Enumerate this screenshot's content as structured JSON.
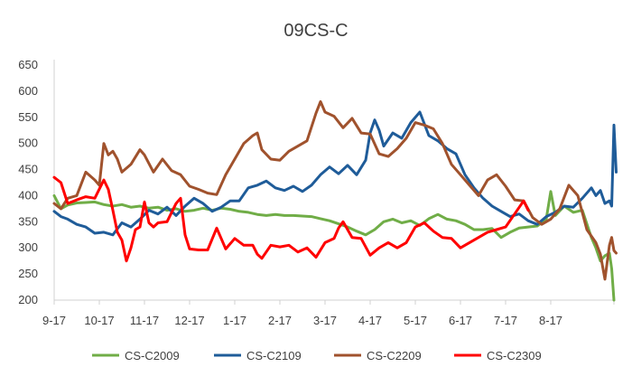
{
  "chart_data": {
    "type": "line",
    "title": "09CS-C",
    "xlabel": "",
    "ylabel": "",
    "ylim": [
      200,
      650
    ],
    "yticks": [
      200,
      250,
      300,
      350,
      400,
      450,
      500,
      550,
      600,
      650
    ],
    "xlim": [
      0,
      12.4
    ],
    "xtick_labels": [
      "9-17",
      "10-17",
      "11-17",
      "12-17",
      "1-17",
      "2-17",
      "3-17",
      "4-17",
      "5-17",
      "6-17",
      "7-17",
      "8-17"
    ],
    "grid": false,
    "legend_position": "bottom",
    "series": [
      {
        "name": "CS-C2009",
        "color": "#70ad47",
        "points": [
          [
            0,
            400
          ],
          [
            0.15,
            375
          ],
          [
            0.3,
            382
          ],
          [
            0.5,
            386
          ],
          [
            0.7,
            387
          ],
          [
            0.9,
            388
          ],
          [
            1.1,
            383
          ],
          [
            1.3,
            380
          ],
          [
            1.5,
            383
          ],
          [
            1.7,
            378
          ],
          [
            1.9,
            380
          ],
          [
            2.1,
            376
          ],
          [
            2.3,
            378
          ],
          [
            2.5,
            372
          ],
          [
            2.7,
            375
          ],
          [
            2.9,
            370
          ],
          [
            3.1,
            372
          ],
          [
            3.3,
            376
          ],
          [
            3.5,
            372
          ],
          [
            3.7,
            376
          ],
          [
            3.9,
            374
          ],
          [
            4.1,
            370
          ],
          [
            4.3,
            368
          ],
          [
            4.5,
            364
          ],
          [
            4.7,
            362
          ],
          [
            4.9,
            364
          ],
          [
            5.1,
            362
          ],
          [
            5.3,
            362
          ],
          [
            5.5,
            361
          ],
          [
            5.7,
            360
          ],
          [
            5.9,
            356
          ],
          [
            6.1,
            352
          ],
          [
            6.3,
            346
          ],
          [
            6.5,
            340
          ],
          [
            6.7,
            332
          ],
          [
            6.9,
            325
          ],
          [
            7.1,
            335
          ],
          [
            7.3,
            350
          ],
          [
            7.5,
            355
          ],
          [
            7.7,
            348
          ],
          [
            7.9,
            352
          ],
          [
            8.1,
            343
          ],
          [
            8.3,
            356
          ],
          [
            8.5,
            364
          ],
          [
            8.7,
            355
          ],
          [
            8.9,
            352
          ],
          [
            9.1,
            345
          ],
          [
            9.3,
            335
          ],
          [
            9.5,
            335
          ],
          [
            9.7,
            337
          ],
          [
            9.9,
            320
          ],
          [
            10.1,
            330
          ],
          [
            10.3,
            338
          ],
          [
            10.5,
            340
          ],
          [
            10.7,
            342
          ],
          [
            10.9,
            355
          ],
          [
            11.0,
            408
          ],
          [
            11.1,
            362
          ],
          [
            11.3,
            380
          ],
          [
            11.5,
            368
          ],
          [
            11.7,
            372
          ],
          [
            11.9,
            320
          ],
          [
            12.0,
            300
          ],
          [
            12.1,
            275
          ],
          [
            12.2,
            285
          ],
          [
            12.3,
            290
          ],
          [
            12.35,
            260
          ],
          [
            12.4,
            200
          ]
        ]
      },
      {
        "name": "CS-C2109",
        "color": "#1f5c99",
        "points": [
          [
            0,
            370
          ],
          [
            0.15,
            360
          ],
          [
            0.3,
            355
          ],
          [
            0.5,
            345
          ],
          [
            0.7,
            340
          ],
          [
            0.9,
            328
          ],
          [
            1.1,
            330
          ],
          [
            1.3,
            325
          ],
          [
            1.5,
            348
          ],
          [
            1.7,
            340
          ],
          [
            1.9,
            355
          ],
          [
            2.1,
            372
          ],
          [
            2.3,
            365
          ],
          [
            2.5,
            378
          ],
          [
            2.7,
            362
          ],
          [
            2.9,
            380
          ],
          [
            3.1,
            395
          ],
          [
            3.3,
            385
          ],
          [
            3.5,
            370
          ],
          [
            3.7,
            378
          ],
          [
            3.9,
            390
          ],
          [
            4.1,
            390
          ],
          [
            4.3,
            415
          ],
          [
            4.5,
            420
          ],
          [
            4.7,
            428
          ],
          [
            4.9,
            415
          ],
          [
            5.1,
            410
          ],
          [
            5.3,
            418
          ],
          [
            5.5,
            408
          ],
          [
            5.7,
            420
          ],
          [
            5.9,
            440
          ],
          [
            6.1,
            455
          ],
          [
            6.3,
            442
          ],
          [
            6.5,
            458
          ],
          [
            6.7,
            440
          ],
          [
            6.9,
            468
          ],
          [
            7.0,
            520
          ],
          [
            7.1,
            545
          ],
          [
            7.2,
            525
          ],
          [
            7.3,
            495
          ],
          [
            7.5,
            520
          ],
          [
            7.7,
            510
          ],
          [
            7.9,
            540
          ],
          [
            8.1,
            560
          ],
          [
            8.3,
            515
          ],
          [
            8.5,
            505
          ],
          [
            8.7,
            490
          ],
          [
            8.9,
            480
          ],
          [
            9.1,
            440
          ],
          [
            9.3,
            415
          ],
          [
            9.5,
            395
          ],
          [
            9.7,
            380
          ],
          [
            9.9,
            370
          ],
          [
            10.1,
            360
          ],
          [
            10.3,
            365
          ],
          [
            10.5,
            352
          ],
          [
            10.7,
            345
          ],
          [
            10.9,
            360
          ],
          [
            11.1,
            368
          ],
          [
            11.3,
            380
          ],
          [
            11.5,
            378
          ],
          [
            11.7,
            395
          ],
          [
            11.9,
            415
          ],
          [
            12.0,
            400
          ],
          [
            12.1,
            410
          ],
          [
            12.2,
            385
          ],
          [
            12.3,
            390
          ],
          [
            12.35,
            380
          ],
          [
            12.4,
            535
          ],
          [
            12.45,
            445
          ]
        ]
      },
      {
        "name": "CS-C2209",
        "color": "#a0522d",
        "points": [
          [
            0,
            385
          ],
          [
            0.15,
            375
          ],
          [
            0.3,
            395
          ],
          [
            0.5,
            400
          ],
          [
            0.7,
            445
          ],
          [
            0.9,
            430
          ],
          [
            1.0,
            420
          ],
          [
            1.1,
            500
          ],
          [
            1.2,
            478
          ],
          [
            1.3,
            485
          ],
          [
            1.4,
            470
          ],
          [
            1.5,
            445
          ],
          [
            1.7,
            460
          ],
          [
            1.9,
            488
          ],
          [
            2.0,
            478
          ],
          [
            2.2,
            445
          ],
          [
            2.4,
            470
          ],
          [
            2.6,
            448
          ],
          [
            2.8,
            440
          ],
          [
            3.0,
            418
          ],
          [
            3.2,
            412
          ],
          [
            3.4,
            405
          ],
          [
            3.6,
            402
          ],
          [
            3.8,
            440
          ],
          [
            4.0,
            470
          ],
          [
            4.2,
            500
          ],
          [
            4.4,
            515
          ],
          [
            4.5,
            520
          ],
          [
            4.6,
            488
          ],
          [
            4.8,
            470
          ],
          [
            5.0,
            468
          ],
          [
            5.2,
            485
          ],
          [
            5.4,
            495
          ],
          [
            5.6,
            505
          ],
          [
            5.8,
            558
          ],
          [
            5.9,
            580
          ],
          [
            6.0,
            560
          ],
          [
            6.2,
            552
          ],
          [
            6.4,
            530
          ],
          [
            6.6,
            548
          ],
          [
            6.8,
            520
          ],
          [
            7.0,
            518
          ],
          [
            7.2,
            480
          ],
          [
            7.4,
            475
          ],
          [
            7.6,
            490
          ],
          [
            7.8,
            510
          ],
          [
            8.0,
            540
          ],
          [
            8.2,
            535
          ],
          [
            8.4,
            528
          ],
          [
            8.6,
            500
          ],
          [
            8.8,
            460
          ],
          [
            9.0,
            440
          ],
          [
            9.2,
            420
          ],
          [
            9.4,
            400
          ],
          [
            9.6,
            430
          ],
          [
            9.8,
            440
          ],
          [
            10.0,
            418
          ],
          [
            10.2,
            392
          ],
          [
            10.4,
            390
          ],
          [
            10.6,
            358
          ],
          [
            10.8,
            345
          ],
          [
            11.0,
            355
          ],
          [
            11.2,
            375
          ],
          [
            11.4,
            420
          ],
          [
            11.6,
            400
          ],
          [
            11.8,
            335
          ],
          [
            12.0,
            310
          ],
          [
            12.1,
            288
          ],
          [
            12.2,
            240
          ],
          [
            12.3,
            305
          ],
          [
            12.35,
            320
          ],
          [
            12.4,
            295
          ],
          [
            12.45,
            290
          ]
        ]
      },
      {
        "name": "CS-C2309",
        "color": "#ff0000",
        "points": [
          [
            0,
            435
          ],
          [
            0.15,
            425
          ],
          [
            0.3,
            385
          ],
          [
            0.5,
            392
          ],
          [
            0.7,
            398
          ],
          [
            0.9,
            395
          ],
          [
            1.1,
            430
          ],
          [
            1.2,
            412
          ],
          [
            1.3,
            372
          ],
          [
            1.4,
            330
          ],
          [
            1.5,
            315
          ],
          [
            1.6,
            275
          ],
          [
            1.7,
            300
          ],
          [
            1.8,
            335
          ],
          [
            1.9,
            340
          ],
          [
            2.0,
            388
          ],
          [
            2.1,
            348
          ],
          [
            2.2,
            340
          ],
          [
            2.3,
            348
          ],
          [
            2.5,
            350
          ],
          [
            2.7,
            385
          ],
          [
            2.8,
            395
          ],
          [
            2.9,
            325
          ],
          [
            3.0,
            298
          ],
          [
            3.2,
            296
          ],
          [
            3.4,
            296
          ],
          [
            3.6,
            338
          ],
          [
            3.7,
            318
          ],
          [
            3.8,
            298
          ],
          [
            4.0,
            318
          ],
          [
            4.2,
            305
          ],
          [
            4.4,
            305
          ],
          [
            4.5,
            288
          ],
          [
            4.6,
            280
          ],
          [
            4.8,
            305
          ],
          [
            5.0,
            302
          ],
          [
            5.2,
            305
          ],
          [
            5.4,
            292
          ],
          [
            5.6,
            300
          ],
          [
            5.8,
            282
          ],
          [
            6.0,
            310
          ],
          [
            6.2,
            318
          ],
          [
            6.3,
            338
          ],
          [
            6.4,
            350
          ],
          [
            6.6,
            320
          ],
          [
            6.8,
            318
          ],
          [
            7.0,
            286
          ],
          [
            7.2,
            300
          ],
          [
            7.4,
            310
          ],
          [
            7.6,
            300
          ],
          [
            7.8,
            310
          ],
          [
            8.0,
            340
          ],
          [
            8.2,
            348
          ],
          [
            8.4,
            332
          ],
          [
            8.6,
            320
          ],
          [
            8.8,
            318
          ],
          [
            9.0,
            300
          ],
          [
            9.2,
            310
          ],
          [
            9.4,
            320
          ],
          [
            9.6,
            330
          ],
          [
            9.8,
            335
          ],
          [
            10.0,
            340
          ],
          [
            10.2,
            365
          ],
          [
            10.4,
            390
          ],
          [
            10.5,
            372
          ]
        ]
      }
    ]
  }
}
